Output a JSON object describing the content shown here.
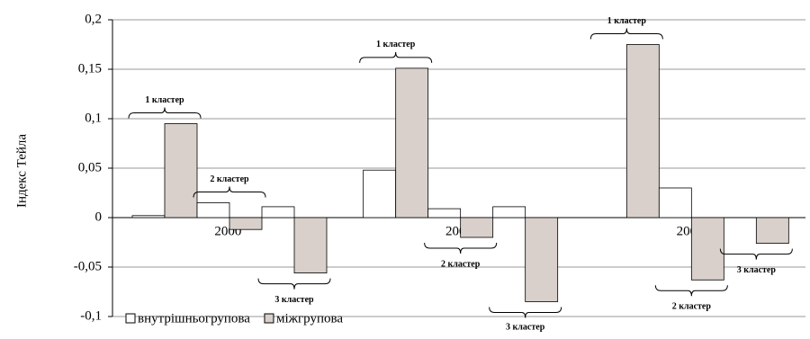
{
  "chart_data": {
    "type": "bar",
    "y_label": "Індекс Тейла",
    "groups": [
      "2000",
      "2004",
      "2009"
    ],
    "categories": [
      "1 кластер",
      "2 кластер",
      "3 кластер",
      "1 кластер",
      "2 кластер",
      "3 кластер",
      "1 кластер",
      "2 кластер",
      "3 кластер"
    ],
    "series": [
      {
        "name": "внутрішньогрупова",
        "color": "#ffffff",
        "values": [
          0.002,
          0.015,
          0.011,
          0.048,
          0.009,
          0.011,
          0,
          0.03,
          0
        ]
      },
      {
        "name": "міжгрупова",
        "color": "#d9d0cb",
        "values": [
          0.095,
          -0.012,
          -0.056,
          0.151,
          -0.02,
          -0.085,
          0.175,
          -0.063,
          -0.026
        ]
      }
    ],
    "ylim": [
      -0.1,
      0.2
    ],
    "yticks": [
      {
        "value": -0.1,
        "label": "-0,1"
      },
      {
        "value": -0.05,
        "label": "-0,05"
      },
      0,
      {
        "value": 0.05,
        "label": "0,05"
      },
      {
        "value": 0.1,
        "label": "0,1"
      },
      {
        "value": 0.15,
        "label": "0,15"
      },
      {
        "value": 0.2,
        "label": "0,2"
      }
    ],
    "grid": true
  }
}
